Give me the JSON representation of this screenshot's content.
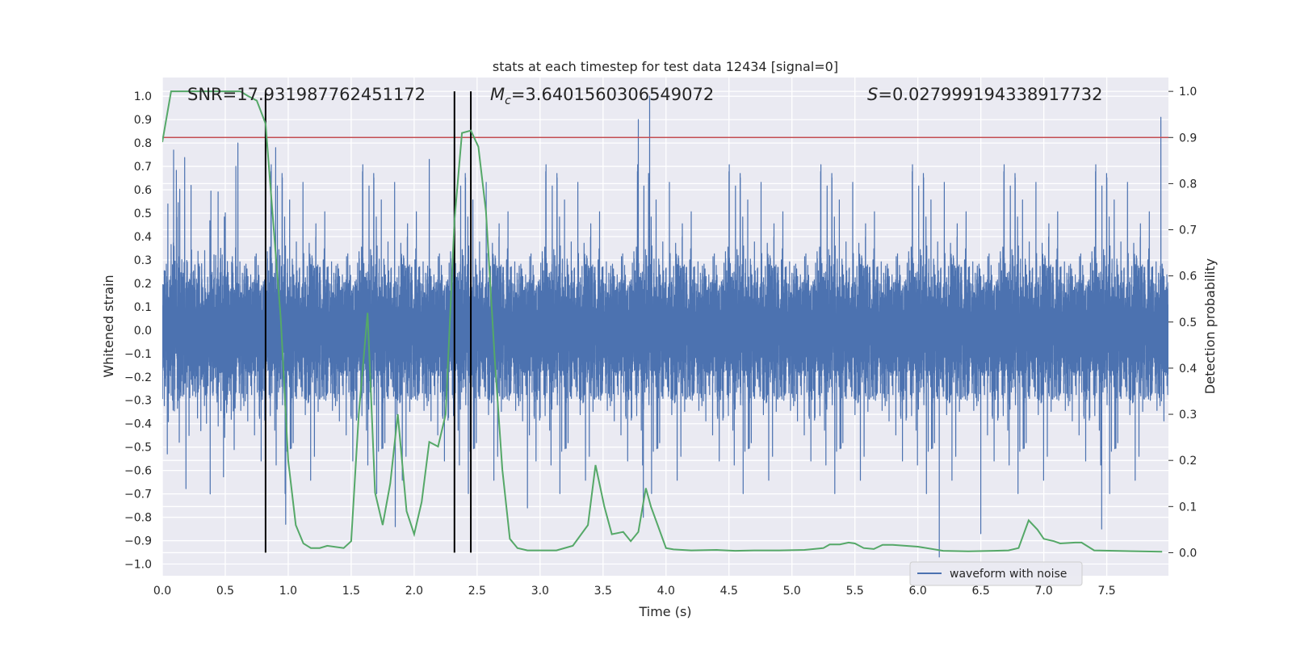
{
  "chart_data": {
    "type": "line",
    "title": "stats at each timestep for test data 12434 [signal=0]",
    "xlabel": "Time (s)",
    "ylabel": "Whitened strain",
    "ylabel_right": "Detection probability",
    "xlim": [
      0.0,
      7.99
    ],
    "ylim": [
      -1.05,
      1.08
    ],
    "ylim_right": [
      -0.05,
      1.03
    ],
    "x_ticks": [
      "0.0",
      "0.5",
      "1.0",
      "1.5",
      "2.0",
      "2.5",
      "3.0",
      "3.5",
      "4.0",
      "4.5",
      "5.0",
      "5.5",
      "6.0",
      "6.5",
      "7.0",
      "7.5"
    ],
    "y_ticks": [
      "1.0",
      "0.9",
      "0.8",
      "0.7",
      "0.6",
      "0.5",
      "0.4",
      "0.3",
      "0.2",
      "0.1",
      "0.0",
      "−0.1",
      "−0.2",
      "−0.3",
      "−0.4",
      "−0.5",
      "−0.6",
      "−0.7",
      "−0.8",
      "−0.9",
      "−1.0"
    ],
    "y_ticks_right": [
      "1.0",
      "0.9",
      "0.8",
      "0.7",
      "0.6",
      "0.5",
      "0.4",
      "0.3",
      "0.2",
      "0.1",
      "0.0"
    ],
    "grid": true,
    "legend_position": "lower-right",
    "annotations": {
      "snr": "SNR=17.931987762451172",
      "mc_symbol": "M",
      "mc_sub": "c",
      "mc_value": "=3.6401560306549072",
      "s_symbol": "S",
      "s_value": "=0.027999194338917732"
    },
    "threshold_right": 0.9,
    "vlines_x": [
      0.82,
      2.32,
      2.45
    ],
    "series": [
      {
        "name": "waveform with noise",
        "axis": "left",
        "color": "#4c72b0",
        "sample_rate": 2048,
        "duration": 8.0,
        "peaks": [
          {
            "x": 0.09,
            "y": 0.77
          },
          {
            "x": 0.38,
            "y": -0.7
          },
          {
            "x": 0.6,
            "y": 0.8
          },
          {
            "x": 0.9,
            "y": 0.78
          },
          {
            "x": 0.98,
            "y": -0.83
          },
          {
            "x": 1.85,
            "y": -0.84
          },
          {
            "x": 2.12,
            "y": 0.73
          },
          {
            "x": 2.9,
            "y": -0.76
          },
          {
            "x": 3.78,
            "y": 0.9
          },
          {
            "x": 3.87,
            "y": 1.0
          },
          {
            "x": 3.82,
            "y": -0.8
          },
          {
            "x": 6.17,
            "y": -0.97
          },
          {
            "x": 6.5,
            "y": -0.87
          },
          {
            "x": 7.46,
            "y": -0.85
          },
          {
            "x": 7.93,
            "y": 0.91
          }
        ]
      },
      {
        "name": "Detection probability",
        "axis": "right",
        "color": "#55a868",
        "x": [
          0.0,
          0.07,
          0.14,
          0.3,
          0.45,
          0.62,
          0.68,
          0.75,
          0.82,
          0.88,
          0.94,
          1.0,
          1.06,
          1.12,
          1.18,
          1.25,
          1.31,
          1.44,
          1.5,
          1.56,
          1.63,
          1.69,
          1.75,
          1.81,
          1.87,
          1.94,
          2.0,
          2.06,
          2.12,
          2.19,
          2.25,
          2.32,
          2.38,
          2.45,
          2.51,
          2.57,
          2.64,
          2.7,
          2.76,
          2.82,
          2.9,
          3.0,
          3.13,
          3.26,
          3.38,
          3.44,
          3.51,
          3.57,
          3.66,
          3.72,
          3.78,
          3.84,
          3.88,
          4.0,
          4.06,
          4.2,
          4.4,
          4.55,
          4.7,
          4.9,
          5.1,
          5.25,
          5.3,
          5.38,
          5.45,
          5.5,
          5.57,
          5.65,
          5.72,
          5.8,
          5.9,
          6.0,
          6.2,
          6.4,
          6.6,
          6.72,
          6.8,
          6.88,
          6.95,
          7.0,
          7.08,
          7.13,
          7.25,
          7.3,
          7.4,
          7.94
        ],
        "y": [
          0.89,
          1.0,
          1.0,
          1.0,
          1.0,
          1.0,
          0.99,
          0.98,
          0.93,
          0.72,
          0.51,
          0.2,
          0.06,
          0.02,
          0.01,
          0.01,
          0.015,
          0.01,
          0.025,
          0.3,
          0.52,
          0.13,
          0.06,
          0.15,
          0.3,
          0.09,
          0.04,
          0.11,
          0.24,
          0.23,
          0.3,
          0.72,
          0.91,
          0.915,
          0.88,
          0.74,
          0.42,
          0.18,
          0.03,
          0.01,
          0.005,
          0.005,
          0.005,
          0.015,
          0.06,
          0.19,
          0.1,
          0.04,
          0.045,
          0.025,
          0.045,
          0.14,
          0.1,
          0.01,
          0.007,
          0.005,
          0.006,
          0.004,
          0.005,
          0.005,
          0.006,
          0.01,
          0.018,
          0.018,
          0.022,
          0.02,
          0.01,
          0.008,
          0.017,
          0.017,
          0.015,
          0.013,
          0.004,
          0.003,
          0.004,
          0.005,
          0.01,
          0.07,
          0.05,
          0.03,
          0.025,
          0.02,
          0.022,
          0.022,
          0.005,
          0.002
        ]
      }
    ]
  }
}
